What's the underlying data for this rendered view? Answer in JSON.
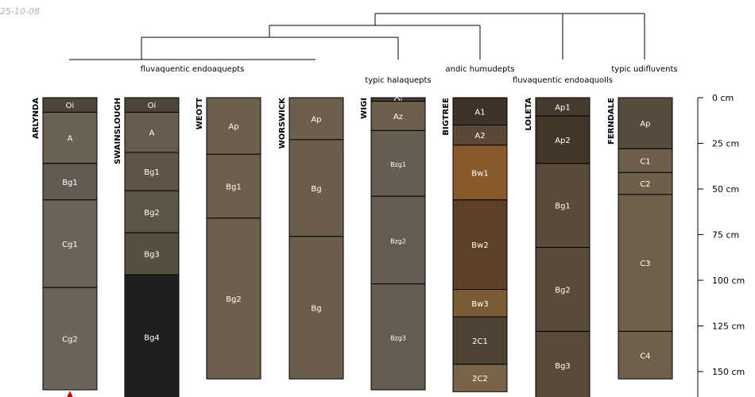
{
  "stamp": "25-10-08",
  "chart_data": {
    "type": "soil-profile-sketch",
    "depth_unit": "cm",
    "depth_axis": {
      "ticks": [
        0,
        25,
        50,
        75,
        100,
        125,
        150
      ],
      "labels": [
        "0 cm",
        "25 cm",
        "50 cm",
        "75 cm",
        "100 cm",
        "125 cm",
        "150 cm"
      ]
    },
    "profiles": [
      {
        "name": "ARLYNDA",
        "bottom_marker": true,
        "horizons": [
          {
            "name": "Oi",
            "top": 0,
            "bottom": 8,
            "color": "#4e463b"
          },
          {
            "name": "A",
            "top": 8,
            "bottom": 36,
            "color": "#6a6255"
          },
          {
            "name": "Bg1",
            "top": 36,
            "bottom": 56,
            "color": "#625b52"
          },
          {
            "name": "Cg1",
            "top": 56,
            "bottom": 104,
            "color": "#6a6357"
          },
          {
            "name": "Cg2",
            "top": 104,
            "bottom": 160,
            "color": "#6b6559"
          }
        ]
      },
      {
        "name": "SWAINSLOUGH",
        "horizons": [
          {
            "name": "Oi",
            "top": 0,
            "bottom": 8,
            "color": "#4e463b"
          },
          {
            "name": "A",
            "top": 8,
            "bottom": 30,
            "color": "#685d4c"
          },
          {
            "name": "Bg1",
            "top": 30,
            "bottom": 51,
            "color": "#5e5546"
          },
          {
            "name": "Bg2",
            "top": 51,
            "bottom": 74,
            "color": "#5c5445"
          },
          {
            "name": "Bg3",
            "top": 74,
            "bottom": 97,
            "color": "#574f42"
          },
          {
            "name": "Bg4",
            "top": 97,
            "bottom": 165,
            "color": "#1e1f1e"
          }
        ]
      },
      {
        "name": "WEOTT",
        "horizons": [
          {
            "name": "Ap",
            "top": 0,
            "bottom": 31,
            "color": "#6c5f4c"
          },
          {
            "name": "Bg1",
            "top": 31,
            "bottom": 66,
            "color": "#6b5e4b"
          },
          {
            "name": "Bg2",
            "top": 66,
            "bottom": 154,
            "color": "#6c604d"
          }
        ]
      },
      {
        "name": "WORSWICK",
        "horizons": [
          {
            "name": "Ap",
            "top": 0,
            "bottom": 23,
            "color": "#6c5f4c"
          },
          {
            "name": "Bg",
            "top": 23,
            "bottom": 76,
            "color": "#6a5e4b"
          },
          {
            "name": "Bg",
            "top": 76,
            "bottom": 154,
            "color": "#6a5e4b"
          }
        ]
      },
      {
        "name": "WIGI",
        "horizons": [
          {
            "name": "Oi",
            "top": 0,
            "bottom": 2,
            "color": "#3f3a33"
          },
          {
            "name": "Az",
            "top": 2,
            "bottom": 18,
            "color": "#6c5f4c"
          },
          {
            "name": "Bzg1",
            "top": 18,
            "bottom": 54,
            "color": "#635d54"
          },
          {
            "name": "Bzg2",
            "top": 54,
            "bottom": 102,
            "color": "#625c53"
          },
          {
            "name": "Bzg3",
            "top": 102,
            "bottom": 160,
            "color": "#635d54"
          }
        ]
      },
      {
        "name": "BIGTREE",
        "horizons": [
          {
            "name": "A1",
            "top": 0,
            "bottom": 15,
            "color": "#3d3128"
          },
          {
            "name": "A2",
            "top": 15,
            "bottom": 26,
            "color": "#5a4735"
          },
          {
            "name": "Bw1",
            "top": 26,
            "bottom": 56,
            "color": "#8a5a2b"
          },
          {
            "name": "Bw2",
            "top": 56,
            "bottom": 105,
            "color": "#5c4127"
          },
          {
            "name": "Bw3",
            "top": 105,
            "bottom": 120,
            "color": "#7a5c34"
          },
          {
            "name": "2C1",
            "top": 120,
            "bottom": 146,
            "color": "#4d4333"
          },
          {
            "name": "2C2",
            "top": 146,
            "bottom": 161,
            "color": "#7a6248"
          }
        ]
      },
      {
        "name": "LOLETA",
        "horizons": [
          {
            "name": "Ap1",
            "top": 0,
            "bottom": 10,
            "color": "#463a2f"
          },
          {
            "name": "Ap2",
            "top": 10,
            "bottom": 36,
            "color": "#423629"
          },
          {
            "name": "Bg1",
            "top": 36,
            "bottom": 82,
            "color": "#594a3a"
          },
          {
            "name": "Bg2",
            "top": 82,
            "bottom": 128,
            "color": "#594a3a"
          },
          {
            "name": "Bg3",
            "top": 128,
            "bottom": 165,
            "color": "#584939"
          }
        ]
      },
      {
        "name": "FERNDALE",
        "horizons": [
          {
            "name": "Ap",
            "top": 0,
            "bottom": 28,
            "color": "#574b3e"
          },
          {
            "name": "C1",
            "top": 28,
            "bottom": 41,
            "color": "#6e5f4d"
          },
          {
            "name": "C2",
            "top": 41,
            "bottom": 53,
            "color": "#6e5f4d"
          },
          {
            "name": "C3",
            "top": 53,
            "bottom": 128,
            "color": "#705f4b"
          },
          {
            "name": "C4",
            "top": 128,
            "bottom": 154,
            "color": "#705f4b"
          }
        ]
      }
    ],
    "taxonomy_labels": [
      "fluvaquentic endoaquepts",
      "typic halaquepts",
      "andic humudepts",
      "fluvaquentic endoaquolls",
      "typic udifluvents"
    ],
    "dendrogram": "((((ARLYNDA, SWAINSLOUGH, WEOTT, WORSWICK), WIGI), BIGTREE), (LOLETA, FERNDALE))"
  }
}
